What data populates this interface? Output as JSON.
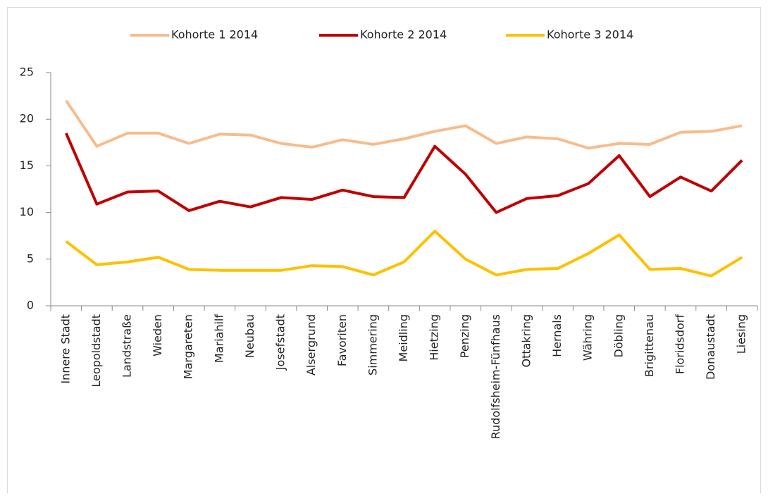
{
  "chart_data": {
    "type": "line",
    "categories": [
      "Innere Stadt",
      "Leopoldstadt",
      "Landstraße",
      "Wieden",
      "Margareten",
      "Mariahilf",
      "Neubau",
      "Josefstadt",
      "Alsergrund",
      "Favoriten",
      "Simmering",
      "Meidling",
      "Hietzing",
      "Penzing",
      "Rudolfsheim-Fünfhaus",
      "Ottakring",
      "Hernals",
      "Währing",
      "Döbling",
      "Brigittenau",
      "Floridsdorf",
      "Donaustadt",
      "Liesing"
    ],
    "series": [
      {
        "name": "Kohorte 1 2014",
        "color": "#f8bc8c",
        "values": [
          22.0,
          17.1,
          18.5,
          18.5,
          17.4,
          18.4,
          18.3,
          17.4,
          17.0,
          17.8,
          17.3,
          17.9,
          18.7,
          19.3,
          17.4,
          18.1,
          17.9,
          16.9,
          17.4,
          17.3,
          18.6,
          18.7,
          19.3
        ]
      },
      {
        "name": "Kohorte 2 2014",
        "color": "#c00000",
        "values": [
          18.5,
          10.9,
          12.2,
          12.3,
          10.2,
          11.2,
          10.6,
          11.6,
          11.4,
          12.4,
          11.7,
          11.6,
          17.1,
          14.1,
          10.0,
          11.5,
          11.8,
          13.1,
          16.1,
          11.7,
          13.8,
          12.3,
          15.6
        ]
      },
      {
        "name": "Kohorte 3 2014",
        "color": "#ffc000",
        "values": [
          6.9,
          4.4,
          4.7,
          5.2,
          3.9,
          3.8,
          3.8,
          3.8,
          4.3,
          4.2,
          3.3,
          4.7,
          8.0,
          5.0,
          3.3,
          3.9,
          4.0,
          5.6,
          7.6,
          3.9,
          4.0,
          3.2,
          5.2
        ]
      }
    ],
    "ylim": [
      0,
      25
    ],
    "yticks": [
      0,
      5,
      10,
      15,
      20,
      25
    ],
    "legend": "top"
  }
}
